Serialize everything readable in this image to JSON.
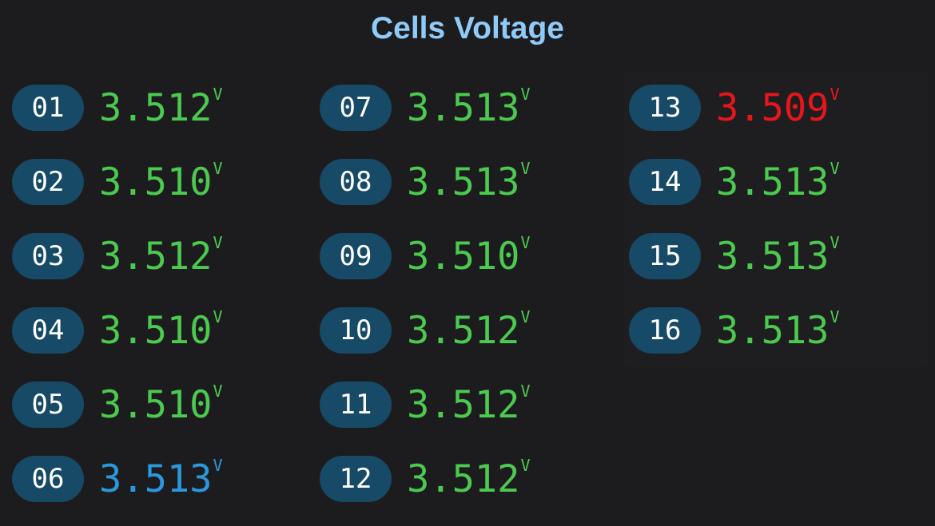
{
  "title": "Cells Voltage",
  "unit": "V",
  "cells": [
    {
      "id": "01",
      "voltage": "3.512",
      "color": "#4cc94f"
    },
    {
      "id": "02",
      "voltage": "3.510",
      "color": "#4cc94f"
    },
    {
      "id": "03",
      "voltage": "3.512",
      "color": "#4cc94f"
    },
    {
      "id": "04",
      "voltage": "3.510",
      "color": "#4cc94f"
    },
    {
      "id": "05",
      "voltage": "3.510",
      "color": "#4cc94f"
    },
    {
      "id": "06",
      "voltage": "3.513",
      "color": "#2a98dc"
    },
    {
      "id": "07",
      "voltage": "3.513",
      "color": "#4cc94f"
    },
    {
      "id": "08",
      "voltage": "3.513",
      "color": "#4cc94f"
    },
    {
      "id": "09",
      "voltage": "3.510",
      "color": "#4cc94f"
    },
    {
      "id": "10",
      "voltage": "3.512",
      "color": "#4cc94f"
    },
    {
      "id": "11",
      "voltage": "3.512",
      "color": "#4cc94f"
    },
    {
      "id": "12",
      "voltage": "3.512",
      "color": "#4cc94f"
    },
    {
      "id": "13",
      "voltage": "3.509",
      "color": "#e8161b"
    },
    {
      "id": "14",
      "voltage": "3.513",
      "color": "#4cc94f"
    },
    {
      "id": "15",
      "voltage": "3.513",
      "color": "#4cc94f"
    },
    {
      "id": "16",
      "voltage": "3.513",
      "color": "#4cc94f"
    }
  ]
}
